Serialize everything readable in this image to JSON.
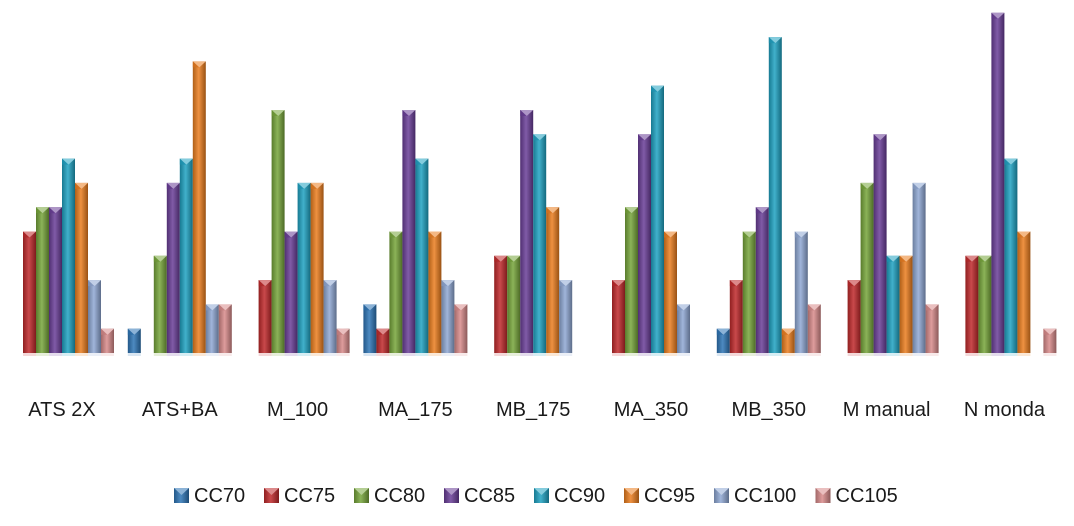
{
  "chart_data": {
    "type": "bar",
    "title": "",
    "xlabel": "",
    "ylabel": "",
    "ylim": [
      0,
      14
    ],
    "grid": false,
    "legend_position": "bottom",
    "categories": [
      "ATS 2X",
      "ATS+BA",
      "M_100",
      "MA_175",
      "MB_175",
      "MA_350",
      "MB_350",
      "M manual",
      "N monda"
    ],
    "series": [
      {
        "name": "CC70",
        "color": "#2E75B6",
        "values": [
          0,
          1,
          0,
          2,
          0,
          0,
          1,
          0,
          0
        ]
      },
      {
        "name": "CC75",
        "color": "#C0292B",
        "values": [
          5,
          0,
          3,
          1,
          4,
          3,
          3,
          3,
          4
        ]
      },
      {
        "name": "CC80",
        "color": "#77A53A",
        "values": [
          6,
          4,
          10,
          5,
          4,
          6,
          5,
          7,
          4
        ]
      },
      {
        "name": "CC85",
        "color": "#6A3E98",
        "values": [
          6,
          7,
          5,
          10,
          10,
          9,
          6,
          9,
          14
        ]
      },
      {
        "name": "CC90",
        "color": "#1FA2C2",
        "values": [
          8,
          8,
          7,
          8,
          9,
          11,
          13,
          4,
          8
        ]
      },
      {
        "name": "CC95",
        "color": "#EB7E1F",
        "values": [
          7,
          12,
          7,
          5,
          6,
          5,
          1,
          4,
          5
        ]
      },
      {
        "name": "CC100",
        "color": "#8FA8D4",
        "values": [
          3,
          2,
          3,
          3,
          3,
          2,
          5,
          7,
          0
        ]
      },
      {
        "name": "CC105",
        "color": "#D88A8A",
        "values": [
          1,
          2,
          1,
          2,
          0,
          0,
          2,
          2,
          1
        ]
      }
    ]
  }
}
